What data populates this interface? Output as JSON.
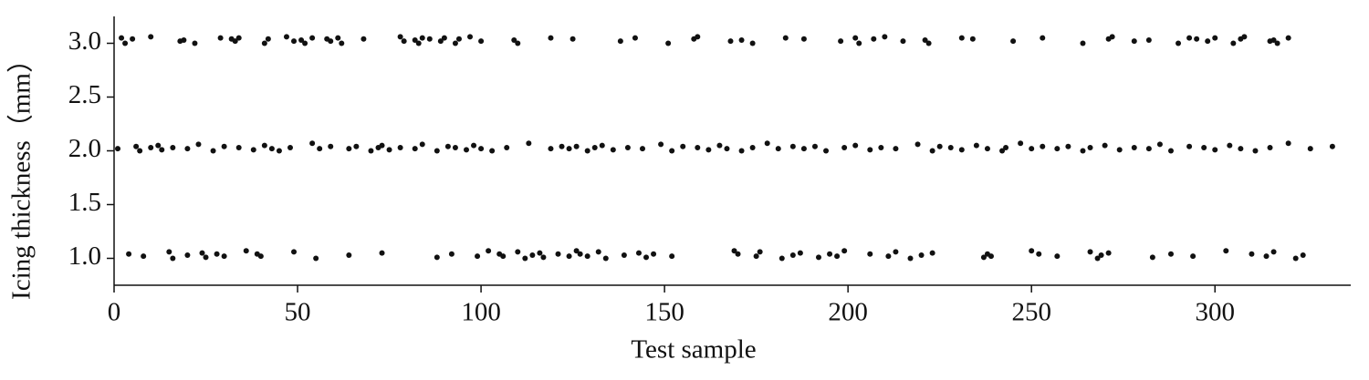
{
  "chart_data": {
    "type": "scatter",
    "xlabel": "Test sample",
    "ylabel": "Icing thickness（mm）",
    "xlim": [
      0,
      337
    ],
    "ylim": [
      0.75,
      3.25
    ],
    "xticks": [
      0,
      50,
      100,
      150,
      200,
      250,
      300
    ],
    "yticks": [
      {
        "value": 1,
        "label": "1.0"
      },
      {
        "value": 1.5,
        "label": "1.5"
      },
      {
        "value": 2,
        "label": "2.0"
      },
      {
        "value": 2.5,
        "label": "2.5"
      },
      {
        "value": 3,
        "label": "3.0"
      }
    ],
    "color": "#111111",
    "series": [
      {
        "x": [
          2,
          3,
          5,
          10,
          18,
          19,
          22,
          29,
          32,
          33,
          34,
          41,
          42,
          47,
          49,
          51,
          52,
          54,
          58,
          59,
          61,
          62,
          68,
          78,
          79,
          82,
          83,
          84,
          86,
          89,
          90,
          93,
          94,
          97,
          100,
          109,
          110,
          119,
          125,
          138,
          142,
          151,
          158,
          159,
          168,
          171,
          174,
          183,
          188,
          198,
          202,
          203,
          207,
          210,
          215,
          221,
          222,
          231,
          234,
          245,
          253,
          264,
          271,
          272,
          278,
          282,
          290,
          293,
          295,
          298,
          300,
          305,
          307,
          308,
          315,
          316,
          317,
          320
        ],
        "values": [
          3.05,
          3.0,
          3.04,
          3.06,
          3.02,
          3.03,
          3.0,
          3.05,
          3.04,
          3.02,
          3.05,
          3.0,
          3.04,
          3.06,
          3.02,
          3.03,
          3.0,
          3.05,
          3.04,
          3.02,
          3.05,
          3.0,
          3.04,
          3.06,
          3.02,
          3.03,
          3.0,
          3.05,
          3.04,
          3.02,
          3.05,
          3.0,
          3.04,
          3.06,
          3.02,
          3.03,
          3.0,
          3.05,
          3.04,
          3.02,
          3.05,
          3.0,
          3.04,
          3.06,
          3.02,
          3.03,
          3.0,
          3.05,
          3.04,
          3.02,
          3.05,
          3.0,
          3.04,
          3.06,
          3.02,
          3.03,
          3.0,
          3.05,
          3.04,
          3.02,
          3.05,
          3.0,
          3.04,
          3.06,
          3.02,
          3.03,
          3.0,
          3.05,
          3.04,
          3.02,
          3.05,
          3.0,
          3.04,
          3.06,
          3.02,
          3.03,
          3.0,
          3.05
        ]
      },
      {
        "x": [
          1,
          6,
          7,
          10,
          12,
          13,
          16,
          20,
          23,
          27,
          30,
          34,
          38,
          41,
          43,
          45,
          48,
          54,
          56,
          59,
          64,
          66,
          70,
          72,
          73,
          75,
          78,
          82,
          84,
          88,
          91,
          93,
          96,
          98,
          100,
          103,
          107,
          113,
          119,
          122,
          124,
          126,
          129,
          131,
          133,
          136,
          140,
          144,
          149,
          152,
          155,
          159,
          162,
          165,
          167,
          171,
          174,
          178,
          181,
          185,
          188,
          191,
          194,
          199,
          202,
          206,
          209,
          213,
          219,
          223,
          225,
          228,
          231,
          235,
          238,
          242,
          243,
          247,
          250,
          253,
          257,
          260,
          264,
          266,
          270,
          274,
          278,
          282,
          285,
          288,
          293,
          297,
          300,
          304,
          307,
          311,
          315,
          320,
          326,
          332
        ],
        "values": [
          2.02,
          2.04,
          2.0,
          2.03,
          2.05,
          2.01,
          2.03,
          2.02,
          2.06,
          2.0,
          2.04,
          2.03,
          2.01,
          2.05,
          2.02,
          2.0,
          2.03,
          2.07,
          2.02,
          2.04,
          2.02,
          2.04,
          2.0,
          2.03,
          2.05,
          2.01,
          2.03,
          2.02,
          2.06,
          2.0,
          2.04,
          2.03,
          2.01,
          2.05,
          2.02,
          2.0,
          2.03,
          2.07,
          2.02,
          2.04,
          2.02,
          2.04,
          2.0,
          2.03,
          2.05,
          2.01,
          2.03,
          2.02,
          2.06,
          2.0,
          2.04,
          2.03,
          2.01,
          2.05,
          2.02,
          2.0,
          2.03,
          2.07,
          2.02,
          2.04,
          2.02,
          2.04,
          2.0,
          2.03,
          2.05,
          2.01,
          2.03,
          2.02,
          2.06,
          2.0,
          2.04,
          2.03,
          2.01,
          2.05,
          2.02,
          2.0,
          2.03,
          2.07,
          2.02,
          2.04,
          2.02,
          2.04,
          2.0,
          2.03,
          2.05,
          2.01,
          2.03,
          2.02,
          2.06,
          2.0,
          2.04,
          2.03,
          2.01,
          2.05,
          2.02,
          2.0,
          2.03,
          2.07,
          2.02,
          2.04
        ]
      },
      {
        "x": [
          4,
          8,
          15,
          16,
          20,
          24,
          25,
          28,
          30,
          36,
          39,
          40,
          49,
          55,
          64,
          73,
          88,
          92,
          99,
          102,
          105,
          106,
          110,
          112,
          114,
          116,
          117,
          121,
          124,
          126,
          127,
          129,
          132,
          134,
          139,
          143,
          145,
          147,
          152,
          169,
          170,
          175,
          176,
          182,
          185,
          187,
          192,
          195,
          197,
          199,
          206,
          211,
          213,
          217,
          220,
          223,
          237,
          238,
          239,
          250,
          252,
          257,
          266,
          268,
          269,
          271,
          283,
          288,
          294,
          303,
          310,
          314,
          316,
          322,
          324
        ],
        "values": [
          1.04,
          1.02,
          1.06,
          1.0,
          1.03,
          1.05,
          1.01,
          1.04,
          1.02,
          1.07,
          1.04,
          1.02,
          1.06,
          1.0,
          1.03,
          1.05,
          1.01,
          1.04,
          1.02,
          1.07,
          1.04,
          1.02,
          1.06,
          1.0,
          1.03,
          1.05,
          1.01,
          1.04,
          1.02,
          1.07,
          1.04,
          1.02,
          1.06,
          1.0,
          1.03,
          1.05,
          1.01,
          1.04,
          1.02,
          1.07,
          1.04,
          1.02,
          1.06,
          1.0,
          1.03,
          1.05,
          1.01,
          1.04,
          1.02,
          1.07,
          1.04,
          1.02,
          1.06,
          1.0,
          1.03,
          1.05,
          1.01,
          1.04,
          1.02,
          1.07,
          1.04,
          1.02,
          1.06,
          1.0,
          1.03,
          1.05,
          1.01,
          1.04,
          1.02,
          1.07,
          1.04,
          1.02,
          1.06,
          1.0,
          1.03
        ]
      }
    ]
  }
}
